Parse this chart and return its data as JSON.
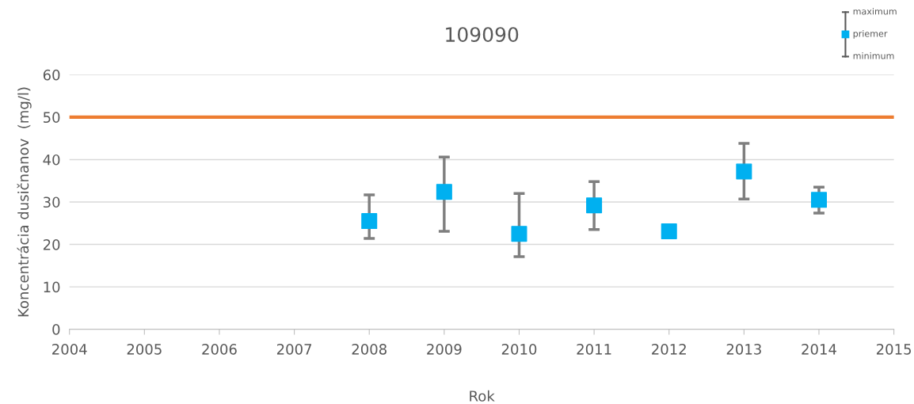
{
  "chart_data": {
    "type": "scatter",
    "title": "109090",
    "xlabel": "Rok",
    "ylabel": "Koncentrácia dusičnanov  (mg/l)",
    "x": [
      2008,
      2009,
      2010,
      2011,
      2012,
      2013,
      2014
    ],
    "series": [
      {
        "name": "priemer",
        "color": "#00b0f0",
        "values": [
          25.5,
          32.4,
          22.5,
          29.2,
          23.1,
          37.2,
          30.5
        ],
        "errors": [
          [
            21.4,
            31.7
          ],
          [
            23.1,
            40.6
          ],
          [
            17.1,
            32.0
          ],
          [
            23.5,
            34.8
          ],
          null,
          [
            30.7,
            43.8
          ],
          [
            27.4,
            33.5
          ]
        ]
      }
    ],
    "annotations": [
      "maximum",
      "minimum"
    ],
    "ref_lines": [
      {
        "axis": "y",
        "value": 50,
        "color": "#ed7d31",
        "line_style": "solid"
      }
    ],
    "xlim": [
      2004,
      2015
    ],
    "xticks": [
      2004,
      2005,
      2006,
      2007,
      2008,
      2009,
      2010,
      2011,
      2012,
      2013,
      2014,
      2015
    ],
    "ylim": [
      0,
      60
    ],
    "yticks": [
      0,
      10,
      20,
      30,
      40,
      50,
      60
    ],
    "grid": "y",
    "marker": "square",
    "legend": "top right"
  }
}
